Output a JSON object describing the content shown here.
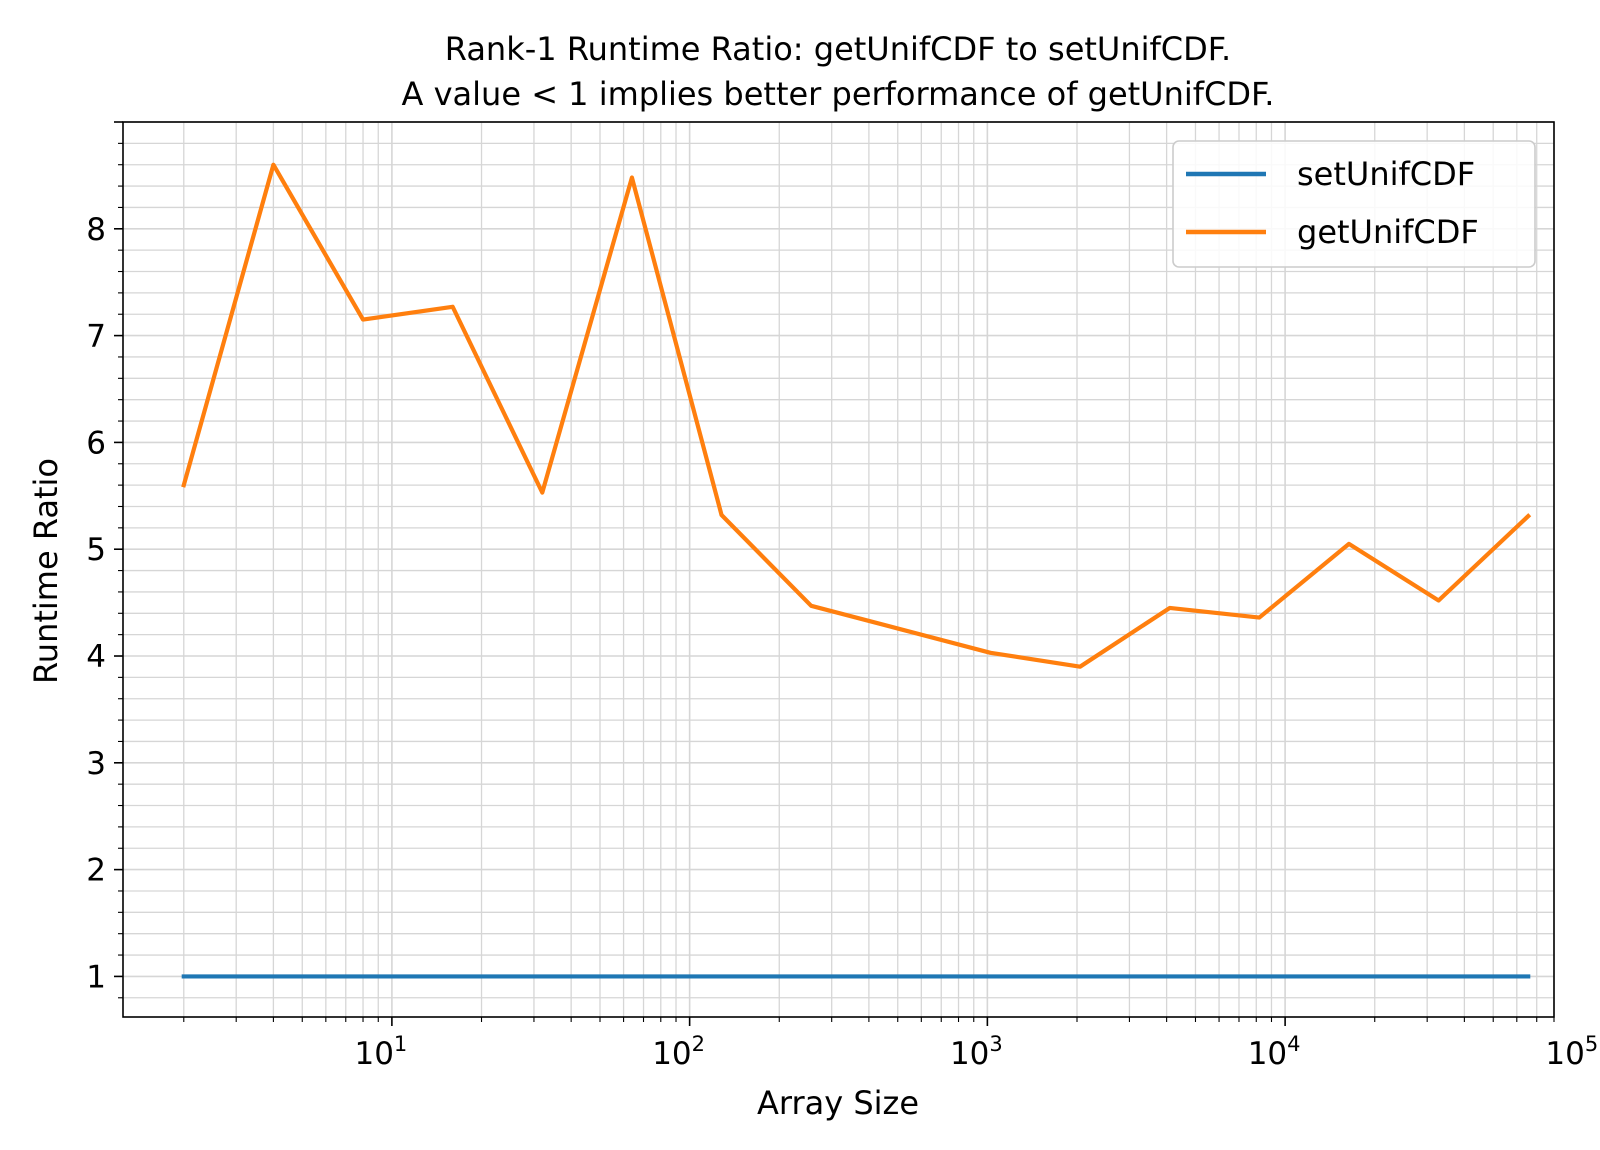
{
  "chart_data": {
    "type": "line",
    "title": "Rank-1 Runtime Ratio: getUnifCDF to setUnifCDF.",
    "subtitle": "A value < 1 implies better performance of getUnifCDF.",
    "xlabel": "Array Size",
    "ylabel": "Runtime Ratio",
    "xscale": "log",
    "xlim": [
      1.25,
      80000
    ],
    "ylim": [
      0.62,
      9.0
    ],
    "x_ticks": [
      {
        "value": 10,
        "base": "10",
        "exp": "1"
      },
      {
        "value": 100,
        "base": "10",
        "exp": "2"
      },
      {
        "value": 1000,
        "base": "10",
        "exp": "3"
      },
      {
        "value": 10000,
        "base": "10",
        "exp": "4"
      },
      {
        "value": 100000,
        "base": "10",
        "exp": "5"
      }
    ],
    "y_ticks": [
      "1",
      "2",
      "3",
      "4",
      "5",
      "6",
      "7",
      "8"
    ],
    "grid": true,
    "legend_position": "top-right",
    "x": [
      2,
      4,
      8,
      16,
      32,
      64,
      128,
      256,
      512,
      1024,
      2048,
      4096,
      8192,
      16384,
      32768,
      65536
    ],
    "series": [
      {
        "name": "setUnifCDF",
        "color": "#1f77b4",
        "values": [
          1,
          1,
          1,
          1,
          1,
          1,
          1,
          1,
          1,
          1,
          1,
          1,
          1,
          1,
          1,
          1
        ]
      },
      {
        "name": "getUnifCDF",
        "color": "#ff7f0e",
        "values": [
          5.6,
          8.6,
          7.15,
          7.27,
          5.53,
          8.48,
          5.32,
          4.47,
          4.25,
          4.03,
          3.9,
          4.45,
          4.36,
          5.05,
          4.52,
          5.31
        ]
      }
    ]
  }
}
